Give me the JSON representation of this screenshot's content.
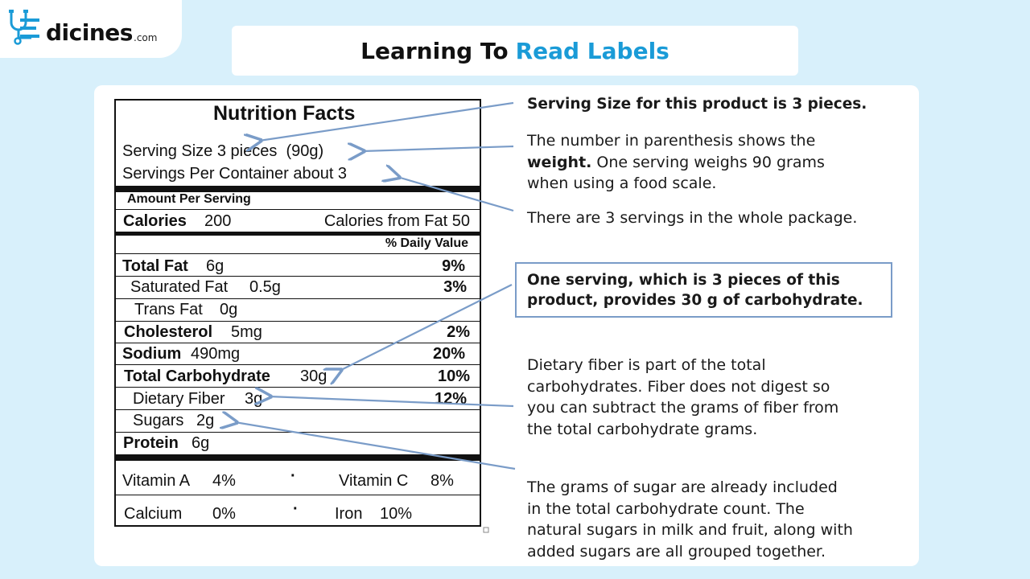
{
  "brand": {
    "name": "dicines",
    "suffix": ".com"
  },
  "header": {
    "title_prefix": "Learning To",
    "title_accent": "Read Labels"
  },
  "label": {
    "title": "Nutrition Facts",
    "serving_size": "Serving Size 3 pieces  (90g)",
    "servings_per_container": "Servings Per Container about 3",
    "amount_per_serving": "Amount Per Serving",
    "calories_label": "Calories",
    "calories_value": "200",
    "calories_from_fat": "Calories from Fat 50",
    "daily_value_header": "% Daily Value",
    "nutrients": [
      {
        "name": "Total Fat",
        "amount": "6g",
        "dv": "9%"
      },
      {
        "name": "Saturated Fat",
        "amount": "0.5g",
        "dv": "3%"
      },
      {
        "name": "Trans Fat",
        "amount": "0g",
        "dv": ""
      },
      {
        "name": "Cholesterol",
        "amount": "5mg",
        "dv": "2%"
      },
      {
        "name": "Sodium",
        "amount": "490mg",
        "dv": "20%"
      },
      {
        "name": "Total Carbohydrate",
        "amount": "30g",
        "dv": "10%"
      },
      {
        "name": "Dietary Fiber",
        "amount": "3g",
        "dv": "12%"
      },
      {
        "name": "Sugars",
        "amount": "2g",
        "dv": ""
      },
      {
        "name": "Protein",
        "amount": "6g",
        "dv": ""
      }
    ],
    "vitamins": [
      {
        "name": "Vitamin A",
        "value": "4%"
      },
      {
        "name": "Vitamin C",
        "value": "8%"
      },
      {
        "name": "Calcium",
        "value": "0%"
      },
      {
        "name": "Iron",
        "value": "10%"
      }
    ],
    "separator": "·"
  },
  "annotations": {
    "serving_size": "Serving Size for this product is 3 pieces.",
    "weight_line1": "The number in parenthesis shows the",
    "weight_bold": "weight.",
    "weight_line2_rest": " One serving weighs 90 grams",
    "weight_line3": "when using a food scale.",
    "servings": "There are 3 servings in the whole package.",
    "carb_line1": "One serving, which is 3 pieces of this",
    "carb_line2": "product, provides 30 g of carbohydrate.",
    "fiber_line1": "Dietary fiber is part of the total",
    "fiber_line2": "carbohydrates. Fiber does not digest so",
    "fiber_line3": "you can subtract the grams of fiber from",
    "fiber_line4": "the total carbohydrate grams.",
    "sugar_line1": "The grams of sugar are already included",
    "sugar_line2": "in the total carbohydrate count. The",
    "sugar_line3": "natural sugars in milk and fruit, along with",
    "sugar_line4": "added sugars are all grouped together."
  },
  "colors": {
    "accent": "#1a9bd7",
    "arrow": "#7a9cc8",
    "background": "#d8f0fb"
  }
}
